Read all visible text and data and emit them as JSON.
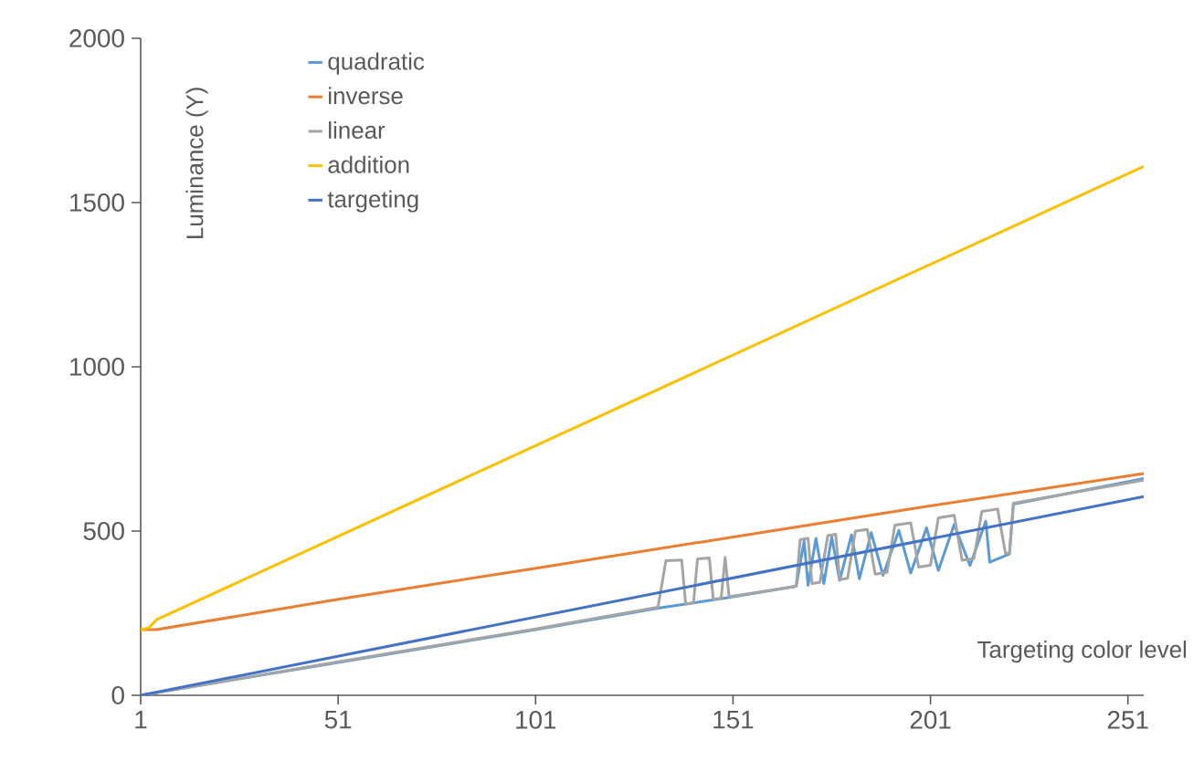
{
  "chart_data": {
    "type": "line",
    "xlabel": "Targeting color level",
    "ylabel": "Luminance (Y)",
    "xlim": [
      1,
      255
    ],
    "ylim": [
      0,
      2000
    ],
    "xticks": [
      1,
      51,
      101,
      151,
      201,
      251
    ],
    "yticks": [
      0,
      500,
      1000,
      1500,
      2000
    ],
    "grid": false,
    "legend": "top left",
    "marker": "none",
    "line_style": "solid",
    "series": [
      {
        "name": "quadratic",
        "color": "#5b9bd5",
        "x": [
          1,
          50,
          100,
          132,
          150,
          167,
          169,
          170,
          172,
          174,
          176,
          178,
          181,
          183,
          186,
          189,
          193,
          196,
          200,
          203,
          207,
          211,
          215,
          216,
          221,
          222,
          255
        ],
        "values": [
          0,
          98,
          198,
          265,
          298,
          332,
          470,
          335,
          478,
          340,
          482,
          350,
          488,
          355,
          495,
          365,
          502,
          372,
          510,
          380,
          520,
          395,
          530,
          405,
          430,
          582,
          660
        ]
      },
      {
        "name": "inverse",
        "color": "#ed7d31",
        "x": [
          1,
          5,
          50,
          100,
          150,
          200,
          255
        ],
        "values": [
          200,
          200,
          290,
          385,
          480,
          575,
          675
        ]
      },
      {
        "name": "linear",
        "color": "#a5a5a5",
        "x": [
          1,
          50,
          100,
          132,
          134,
          138,
          139,
          141,
          142,
          145,
          146,
          148,
          149,
          150,
          167,
          168,
          170,
          171,
          173,
          175,
          177,
          178,
          180,
          182,
          185,
          187,
          190,
          192,
          196,
          198,
          201,
          203,
          207,
          209,
          212,
          214,
          218,
          220,
          221,
          222,
          255
        ],
        "values": [
          0,
          100,
          200,
          268,
          410,
          412,
          278,
          282,
          415,
          418,
          292,
          296,
          420,
          300,
          332,
          474,
          478,
          340,
          344,
          486,
          490,
          352,
          356,
          500,
          505,
          369,
          374,
          518,
          525,
          390,
          396,
          540,
          548,
          411,
          416,
          560,
          567,
          431,
          433,
          585,
          655
        ]
      },
      {
        "name": "addition",
        "color": "#ffc000",
        "x": [
          1,
          3,
          5,
          255
        ],
        "values": [
          200,
          205,
          230,
          1610
        ]
      },
      {
        "name": "targeting",
        "color": "#4472c4",
        "x": [
          1,
          255
        ],
        "values": [
          0,
          605
        ]
      }
    ]
  }
}
